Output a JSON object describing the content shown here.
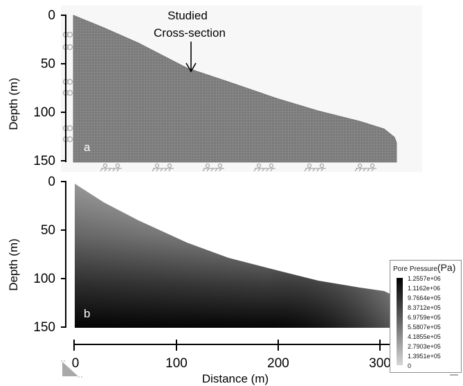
{
  "panel_a": {
    "letter": "a",
    "y_ticks": [
      "0",
      "50",
      "100",
      "150"
    ],
    "y_label": "Depth (m)",
    "annotation_line1": "Studied",
    "annotation_line2": "Cross-section"
  },
  "panel_b": {
    "letter": "b",
    "y_ticks": [
      "0",
      "50",
      "100",
      "150"
    ],
    "y_label": "Depth (m)",
    "x_ticks": [
      "0",
      "100",
      "200",
      "300"
    ],
    "x_label": "Distance (m)"
  },
  "legend": {
    "title": "Pore Pressure",
    "unit": "(Pa)",
    "values": [
      "1.2557e+06",
      "1.1162e+06",
      "9.7664e+05",
      "8.3712e+05",
      "6.9759e+05",
      "5.5807e+05",
      "4.1855e+05",
      "2.7903e+05",
      "1.3951e+05",
      "0"
    ]
  },
  "colors": {
    "mesh_fill": "#7a7a7a",
    "mesh_line": "#9a9a9a",
    "pressure_max": "#000000",
    "pressure_min": "#d6d6d6"
  }
}
